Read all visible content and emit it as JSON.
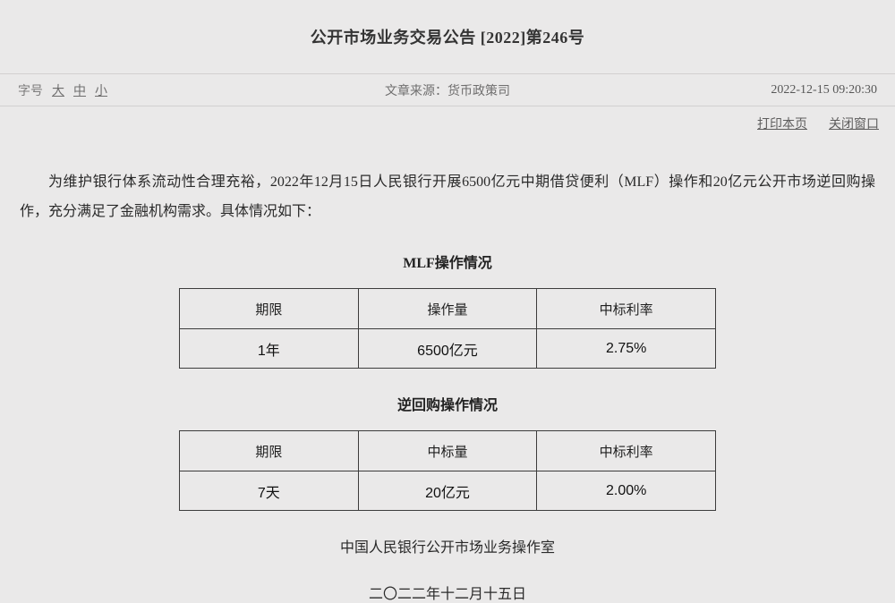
{
  "header": {
    "title": "公开市场业务交易公告 [2022]第246号"
  },
  "toolbar": {
    "font_size_label": "字号",
    "font_sizes": {
      "large": "大",
      "medium": "中",
      "small": "小"
    },
    "source_label": "文章来源：货币政策司",
    "datetime": "2022-12-15 09:20:30"
  },
  "actions": {
    "print_label": "打印本页",
    "close_label": "关闭窗口"
  },
  "article": {
    "paragraph": "为维护银行体系流动性合理充裕，2022年12月15日人民银行开展6500亿元中期借贷便利（MLF）操作和20亿元公开市场逆回购操作，充分满足了金融机构需求。具体情况如下：",
    "tables": [
      {
        "title": "MLF操作情况",
        "headers": [
          "期限",
          "操作量",
          "中标利率"
        ],
        "rows": [
          [
            "1年",
            "6500亿元",
            "2.75%"
          ]
        ]
      },
      {
        "title": "逆回购操作情况",
        "headers": [
          "期限",
          "中标量",
          "中标利率"
        ],
        "rows": [
          [
            "7天",
            "20亿元",
            "2.00%"
          ]
        ]
      }
    ],
    "signature": "中国人民银行公开市场业务操作室",
    "date_line": "二〇二二年十二月十五日"
  }
}
